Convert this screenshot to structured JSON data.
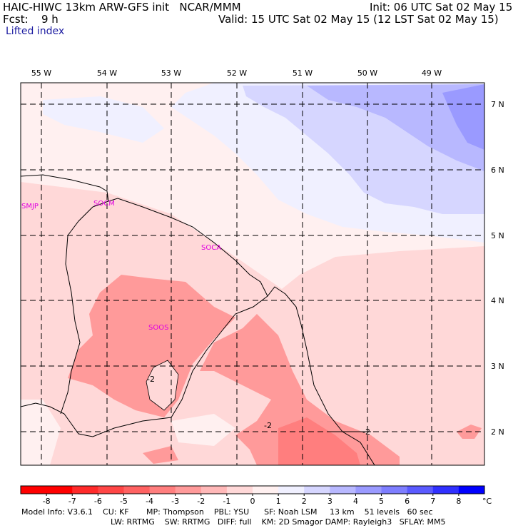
{
  "header": {
    "title": "HAIC-HIWC 13km ARW-GFS init   NCAR/MMM",
    "fcst_label": "Fcst:",
    "fcst_value": "9 h",
    "init": "Init: 06 UTC Sat 02 May 15",
    "valid": "Valid: 15 UTC Sat 02 May 15 (12 LST Sat 02 May 15)",
    "field": "Lifted index"
  },
  "map": {
    "lon_labels": [
      "55 W",
      "54 W",
      "53 W",
      "52 W",
      "51 W",
      "50 W",
      "49 W"
    ],
    "lat_labels": [
      "7 N",
      "6 N",
      "5 N",
      "4 N",
      "3 N",
      "2 N"
    ],
    "stations": [
      "SMJP",
      "SOCM",
      "SOCA",
      "SOOS"
    ],
    "contour_labels": [
      "-2",
      "-2",
      "-2"
    ]
  },
  "colorbar": {
    "tick_labels": [
      "-8",
      "-7",
      "-6",
      "-5",
      "-4",
      "-3",
      "-2",
      "-1",
      "0",
      "1",
      "2",
      "3",
      "4",
      "5",
      "6",
      "7",
      "8"
    ],
    "unit": "°C",
    "colors": [
      "#ff0000",
      "#ff2a2a",
      "#ff4646",
      "#ff6262",
      "#ff7e7e",
      "#ff9a9a",
      "#ffb8b8",
      "#ffd8d8",
      "#fff0f0",
      "#f0f0ff",
      "#d6d6ff",
      "#b8b8ff",
      "#9a9aff",
      "#7e7eff",
      "#5a5aff",
      "#3030ff",
      "#0000ff"
    ]
  },
  "model_info": {
    "line1": "Model Info: V3.6.1    CU: KF       MP: Thompson    PBL: YSU      SF: Noah LSM     13 km    51 levels   60 sec",
    "line2": "LW: RRTMG    SW: RRTMG   DIFF: full    KM: 2D Smagor DAMP: Rayleigh3   SFLAY: MM5"
  }
}
